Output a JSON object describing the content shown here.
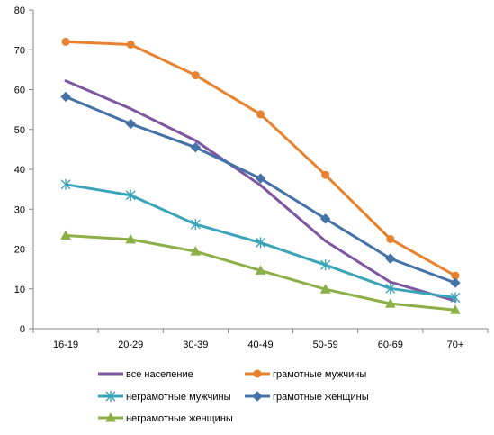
{
  "chart_data": {
    "type": "line",
    "categories": [
      "16-19",
      "20-29",
      "30-39",
      "40-49",
      "50-59",
      "60-69",
      "70+"
    ],
    "ylim": [
      0,
      80
    ],
    "yticks": [
      0,
      10,
      20,
      30,
      40,
      50,
      60,
      70,
      80
    ],
    "grid": false,
    "legend_position": "bottom",
    "series": [
      {
        "name": "все население",
        "color": "#7E57A0",
        "marker": "none",
        "values": [
          62.2,
          55.2,
          47.2,
          36.0,
          22.0,
          11.7,
          7.0
        ]
      },
      {
        "name": "грамотные мужчины",
        "color": "#E8822E",
        "marker": "circle",
        "values": [
          72.0,
          71.3,
          63.6,
          53.8,
          38.6,
          22.5,
          13.3
        ]
      },
      {
        "name": "неграмотные мужчины",
        "color": "#3AA5B8",
        "marker": "star",
        "values": [
          36.2,
          33.5,
          26.2,
          21.6,
          16.0,
          10.1,
          7.8
        ]
      },
      {
        "name": "грамотные женщины",
        "color": "#4572A7",
        "marker": "diamond",
        "values": [
          58.2,
          51.4,
          45.5,
          37.7,
          27.6,
          17.6,
          11.5
        ]
      },
      {
        "name": "неграмотные женщины",
        "color": "#8DAF48",
        "marker": "triangle",
        "values": [
          23.4,
          22.4,
          19.4,
          14.6,
          9.9,
          6.3,
          4.7
        ]
      }
    ]
  }
}
